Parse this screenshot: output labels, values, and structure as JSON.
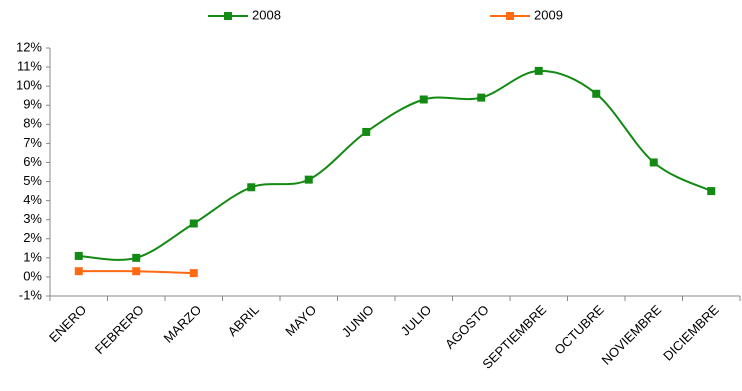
{
  "chart_data": {
    "type": "line",
    "categories": [
      "ENERO",
      "FEBRERO",
      "MARZO",
      "ABRIL",
      "MAYO",
      "JUNIO",
      "JULIO",
      "AGOSTO",
      "SEPTIEMBRE",
      "OCTUBRE",
      "NOVIEMBRE",
      "DICIEMBRE"
    ],
    "series": [
      {
        "name": "2008",
        "color": "#138a13",
        "values": [
          1.1,
          1.0,
          2.8,
          4.7,
          5.1,
          7.6,
          9.3,
          9.4,
          10.8,
          9.6,
          6.0,
          4.5
        ]
      },
      {
        "name": "2009",
        "color": "#ff6a13",
        "values": [
          0.3,
          0.3,
          0.2,
          null,
          null,
          null,
          null,
          null,
          null,
          null,
          null,
          null
        ]
      }
    ],
    "ylim": [
      -1,
      12
    ],
    "yticks": [
      {
        "value": -1,
        "label": "-1%"
      },
      {
        "value": 0,
        "label": "0%"
      },
      {
        "value": 1,
        "label": "1%"
      },
      {
        "value": 2,
        "label": "2%"
      },
      {
        "value": 3,
        "label": "3%"
      },
      {
        "value": 4,
        "label": "4%"
      },
      {
        "value": 5,
        "label": "5%"
      },
      {
        "value": 6,
        "label": "6%"
      },
      {
        "value": 7,
        "label": "7%"
      },
      {
        "value": 8,
        "label": "8%"
      },
      {
        "value": 9,
        "label": "9%"
      },
      {
        "value": 10,
        "label": "10%"
      },
      {
        "value": 11,
        "label": "11%"
      },
      {
        "value": 12,
        "label": "12%"
      }
    ],
    "grid": false,
    "smooth": true,
    "legend": "top"
  }
}
